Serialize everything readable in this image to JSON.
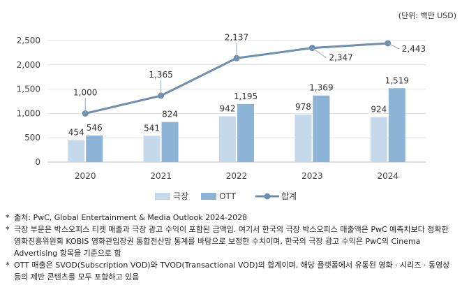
{
  "unit_label": "(단위: 백만 USD)",
  "chart_data": {
    "type": "bar",
    "categories": [
      "2020",
      "2021",
      "2022",
      "2023",
      "2024"
    ],
    "ylim": [
      0,
      2500
    ],
    "yticks": [
      "0",
      "500",
      "1,000",
      "1,500",
      "2,000",
      "2,500"
    ],
    "ytick_values": [
      0,
      500,
      1000,
      1500,
      2000,
      2500
    ],
    "grid": true,
    "legend_position": "bottom",
    "series": [
      {
        "name": "극장",
        "kind": "bar",
        "color": "#c5d9ea",
        "values": [
          454,
          541,
          942,
          978,
          924
        ],
        "labels": [
          "454",
          "541",
          "942",
          "978",
          "924"
        ]
      },
      {
        "name": "OTT",
        "kind": "bar",
        "color": "#8db4d6",
        "values": [
          546,
          824,
          1195,
          1369,
          1519
        ],
        "labels": [
          "546",
          "824",
          "1,195",
          "1,369",
          "1,519"
        ]
      },
      {
        "name": "합계",
        "kind": "line",
        "color": "#6e8fad",
        "values": [
          1000,
          1365,
          2137,
          2347,
          2443
        ],
        "labels": [
          "1,000",
          "1,365",
          "2,137",
          "2,347",
          "2,443"
        ]
      }
    ]
  },
  "notes": [
    {
      "bullet": "*",
      "text": "출처: PwC, Global Entertainment & Media Outlook 2024-2028"
    },
    {
      "bullet": "*",
      "text": "극장 부문은 박스오피스 티켓 매출과 극장 광고 수익이 포함된 금액임. 여기서 한국의 극장 박스오피스 매출액은 PwC 예측치보다 정확한 영화진흥위원회 KOBIS 영화관입장권 통합전산망 통계를 바탕으로 보정한 수치이며, 한국의 극장 광고 수익은 PwC의 Cinema Advertising 항목을 기준으로 함"
    },
    {
      "bullet": "*",
      "text": "OTT 매출은 SVOD(Subscription VOD)와 TVOD(Transactional VOD)의 합계이며, 해당 플랫폼에서 유통된 영화 · 시리즈 · 동영상 등의 제반 콘텐츠를 모두 포함하고 있음"
    }
  ]
}
